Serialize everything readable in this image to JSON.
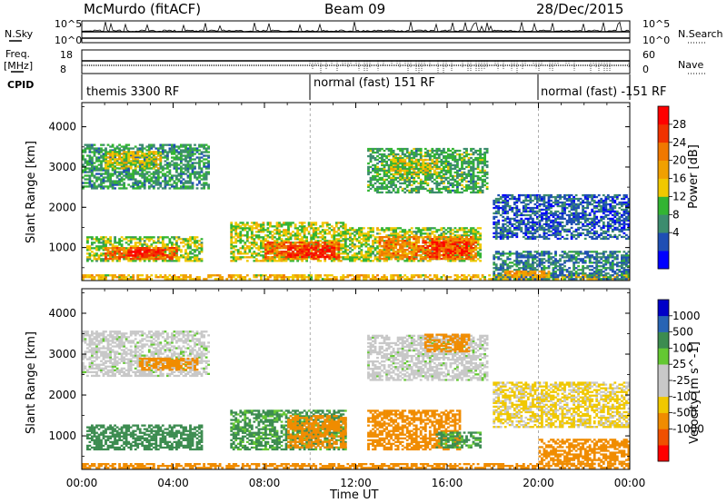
{
  "header": {
    "station": "McMurdo (fitACF)",
    "beam": "Beam 09",
    "date": "28/Dec/2015"
  },
  "top_panel": {
    "nsky_label": "N.Sky",
    "nsearch_label": "N.Search",
    "nsky_ticks": [
      "10^5",
      "10^0"
    ],
    "nsearch_ticks": [
      "10^5",
      "10^0"
    ],
    "freq_label": "Freq.",
    "freq_unit": "[MHz]",
    "freq_ticks": [
      "18",
      "8"
    ],
    "nave_label": "Nave",
    "nave_ticks": [
      "60",
      "0"
    ],
    "cpid_label": "CPID",
    "cpid_segments": [
      {
        "label": "themis 3300 RF",
        "start_hour": 0
      },
      {
        "label": "normal (fast) 151 RF",
        "start_hour": 10
      },
      {
        "label": "normal (fast) -151 RF",
        "start_hour": 20
      }
    ]
  },
  "colors": {
    "power_scale": [
      "#0000ff",
      "#1f4fb4",
      "#3c8c6e",
      "#32b432",
      "#f0c800",
      "#f0a000",
      "#f07800",
      "#f03200",
      "#ff0000"
    ],
    "velocity_scale": [
      "#ff0000",
      "#f05000",
      "#f08c00",
      "#f0c800",
      "#c8c8c8",
      "#c8c8c8",
      "#64c832",
      "#3c8c50",
      "#2864b4",
      "#0000c8"
    ],
    "ground_scatter": "#c8c8c8"
  },
  "chart_data": [
    {
      "type": "heatmap",
      "title": "",
      "xlabel": "",
      "ylabel": "Slant Range [km]",
      "colorbar_label": "Power [dB]",
      "colorbar_ticks": [
        "28",
        "24",
        "20",
        "16",
        "12",
        "8",
        "4"
      ],
      "colorbar_range": [
        0,
        32
      ],
      "x_ticks": [
        "00:00",
        "04:00",
        "08:00",
        "12:00",
        "16:00",
        "20:00",
        "00:00"
      ],
      "x_range_hours": [
        0,
        24
      ],
      "y_ticks": [
        "4000",
        "3000",
        "2000",
        "1000"
      ],
      "y_range_km": [
        180,
        4600
      ],
      "echo_regions": [
        {
          "t0": 0.0,
          "t1": 24.0,
          "r0": 200,
          "r1": 330,
          "value": 18
        },
        {
          "t0": 0.2,
          "t1": 5.2,
          "r0": 650,
          "r1": 1250,
          "value": 14
        },
        {
          "t0": 1.0,
          "t1": 4.2,
          "r0": 700,
          "r1": 1000,
          "value": 24
        },
        {
          "t0": 2.0,
          "t1": 3.6,
          "r0": 780,
          "r1": 920,
          "value": 29
        },
        {
          "t0": 6.5,
          "t1": 11.5,
          "r0": 650,
          "r1": 1600,
          "value": 15
        },
        {
          "t0": 8.0,
          "t1": 11.2,
          "r0": 700,
          "r1": 1150,
          "value": 24
        },
        {
          "t0": 9.0,
          "t1": 11.0,
          "r0": 750,
          "r1": 1050,
          "value": 29
        },
        {
          "t0": 11.5,
          "t1": 17.5,
          "r0": 650,
          "r1": 1500,
          "value": 14
        },
        {
          "t0": 13.0,
          "t1": 17.3,
          "r0": 700,
          "r1": 1250,
          "value": 22
        },
        {
          "t0": 15.0,
          "t1": 17.0,
          "r0": 750,
          "r1": 1150,
          "value": 28
        },
        {
          "t0": 0.0,
          "t1": 5.5,
          "r0": 2450,
          "r1": 3550,
          "value": 10
        },
        {
          "t0": 1.0,
          "t1": 3.5,
          "r0": 2950,
          "r1": 3400,
          "value": 16
        },
        {
          "t0": 12.5,
          "t1": 17.8,
          "r0": 2350,
          "r1": 3450,
          "value": 11
        },
        {
          "t0": 13.5,
          "t1": 15.5,
          "r0": 2800,
          "r1": 3200,
          "value": 16
        },
        {
          "t0": 18.0,
          "t1": 24.0,
          "r0": 1200,
          "r1": 2300,
          "value": 6
        },
        {
          "t0": 18.0,
          "t1": 24.0,
          "r0": 200,
          "r1": 900,
          "value": 8
        },
        {
          "t0": 18.5,
          "t1": 20.5,
          "r0": 250,
          "r1": 400,
          "value": 20
        }
      ]
    },
    {
      "type": "heatmap",
      "title": "",
      "xlabel": "Time UT",
      "ylabel": "Slant Range [km]",
      "colorbar_label": "Velocity [m s^-1]",
      "colorbar_ticks": [
        "1000",
        "500",
        "100",
        "25",
        "-25",
        "-100",
        "-500",
        "-1000"
      ],
      "colorbar_range": [
        -1000,
        1000
      ],
      "x_ticks": [
        "00:00",
        "04:00",
        "08:00",
        "12:00",
        "16:00",
        "20:00",
        "00:00"
      ],
      "x_range_hours": [
        0,
        24
      ],
      "y_ticks": [
        "4000",
        "3000",
        "2000",
        "1000"
      ],
      "y_range_km": [
        180,
        4600
      ],
      "echo_regions": [
        {
          "t0": 0.0,
          "t1": 24.0,
          "r0": 200,
          "r1": 330,
          "value": -150
        },
        {
          "t0": 0.2,
          "t1": 5.2,
          "r0": 650,
          "r1": 1250,
          "value": 150
        },
        {
          "t0": 6.5,
          "t1": 11.5,
          "r0": 650,
          "r1": 1600,
          "value": 120
        },
        {
          "t0": 9.0,
          "t1": 11.5,
          "r0": 700,
          "r1": 1500,
          "value": -200
        },
        {
          "t0": 12.5,
          "t1": 16.5,
          "r0": 650,
          "r1": 1600,
          "value": -300
        },
        {
          "t0": 15.5,
          "t1": 17.5,
          "r0": 700,
          "r1": 1100,
          "value": 120
        },
        {
          "t0": 0.0,
          "t1": 5.5,
          "r0": 2450,
          "r1": 3550,
          "value": 0
        },
        {
          "t0": 2.5,
          "t1": 5.0,
          "r0": 2600,
          "r1": 2900,
          "value": -200
        },
        {
          "t0": 12.5,
          "t1": 17.8,
          "r0": 2350,
          "r1": 3450,
          "value": 0
        },
        {
          "t0": 15.0,
          "t1": 17.0,
          "r0": 3050,
          "r1": 3500,
          "value": -200
        },
        {
          "t0": 18.0,
          "t1": 24.0,
          "r0": 1200,
          "r1": 2300,
          "value": -60
        },
        {
          "t0": 20.0,
          "t1": 24.0,
          "r0": 300,
          "r1": 900,
          "value": -250
        }
      ]
    }
  ]
}
